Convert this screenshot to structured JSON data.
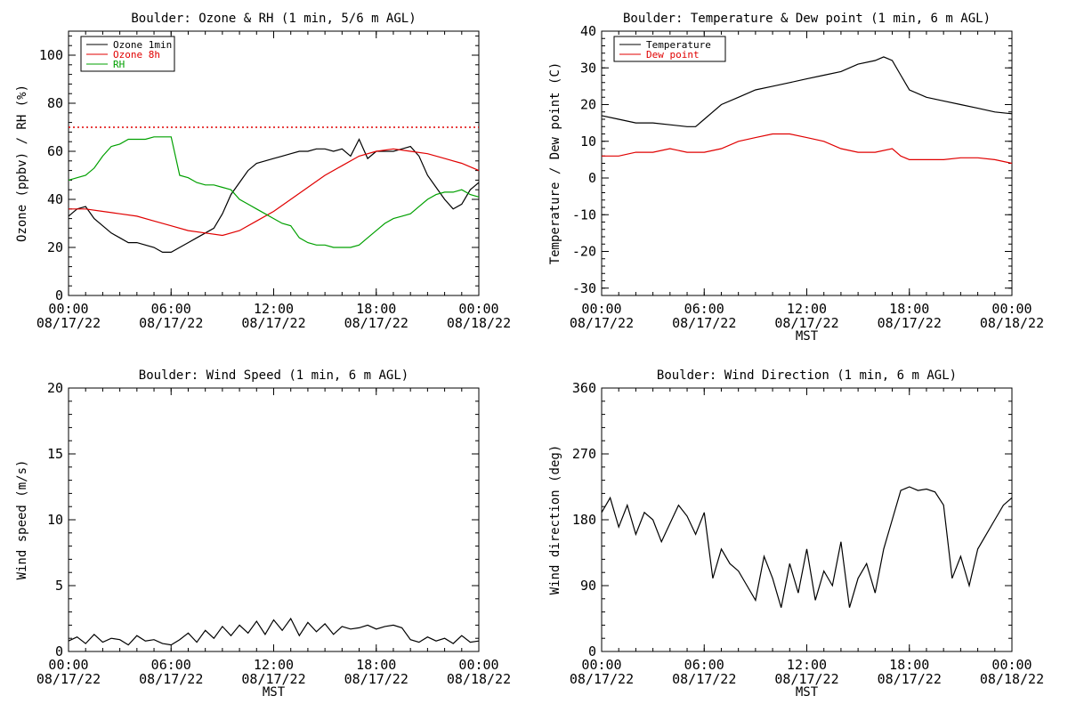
{
  "chart_data": [
    {
      "type": "line",
      "title": "Boulder: Ozone & RH (1 min, 5/6 m AGL)",
      "ylabel": "Ozone (ppbv) / RH (%)",
      "xlabel": "",
      "xlim": [
        0,
        24
      ],
      "ylim": [
        0,
        110
      ],
      "yticks": [
        0,
        20,
        40,
        60,
        80,
        100
      ],
      "xticks": [
        {
          "time": "00:00",
          "date": "08/17/22"
        },
        {
          "time": "06:00",
          "date": "08/17/22"
        },
        {
          "time": "12:00",
          "date": "08/17/22"
        },
        {
          "time": "18:00",
          "date": "08/17/22"
        },
        {
          "time": "00:00",
          "date": "08/18/22"
        }
      ],
      "legend": "top-left",
      "reference_line": {
        "y": 70,
        "color": "#e00000",
        "style": "dotted"
      },
      "series": [
        {
          "name": "Ozone 1min",
          "color": "#000000",
          "x": [
            0,
            0.5,
            1,
            1.5,
            2,
            2.5,
            3,
            3.5,
            4,
            4.5,
            5,
            5.5,
            6,
            6.5,
            7,
            7.5,
            8,
            8.5,
            9,
            9.5,
            10,
            10.5,
            11,
            11.5,
            12,
            12.5,
            13,
            13.5,
            14,
            14.5,
            15,
            15.5,
            16,
            16.5,
            17,
            17.5,
            18,
            18.5,
            19,
            19.5,
            20,
            20.5,
            21,
            21.5,
            22,
            22.5,
            23,
            23.5,
            24
          ],
          "y": [
            33,
            36,
            37,
            32,
            29,
            26,
            24,
            22,
            22,
            21,
            20,
            18,
            18,
            20,
            22,
            24,
            26,
            28,
            34,
            42,
            47,
            52,
            55,
            56,
            57,
            58,
            59,
            60,
            60,
            61,
            61,
            60,
            61,
            58,
            65,
            57,
            60,
            60,
            60,
            61,
            62,
            58,
            50,
            45,
            40,
            36,
            38,
            44,
            47
          ]
        },
        {
          "name": "Ozone 8h",
          "color": "#e00000",
          "x": [
            0,
            1,
            2,
            3,
            4,
            5,
            6,
            7,
            8,
            9,
            10,
            11,
            12,
            13,
            14,
            15,
            16,
            17,
            18,
            19,
            20,
            21,
            22,
            23,
            24
          ],
          "y": [
            36,
            36,
            35,
            34,
            33,
            31,
            29,
            27,
            26,
            25,
            27,
            31,
            35,
            40,
            45,
            50,
            54,
            58,
            60,
            61,
            60,
            59,
            57,
            55,
            52
          ]
        },
        {
          "name": "RH",
          "color": "#00a000",
          "x": [
            0,
            0.5,
            1,
            1.5,
            2,
            2.5,
            3,
            3.5,
            4,
            4.5,
            5,
            5.5,
            6,
            6.5,
            7,
            7.5,
            8,
            8.5,
            9,
            9.5,
            10,
            10.5,
            11,
            11.5,
            12,
            12.5,
            13,
            13.5,
            14,
            14.5,
            15,
            15.5,
            16,
            16.5,
            17,
            17.5,
            18,
            18.5,
            19,
            19.5,
            20,
            20.5,
            21,
            21.5,
            22,
            22.5,
            23,
            23.5,
            24
          ],
          "y": [
            48,
            49,
            50,
            53,
            58,
            62,
            63,
            65,
            65,
            65,
            66,
            66,
            66,
            50,
            49,
            47,
            46,
            46,
            45,
            44,
            40,
            38,
            36,
            34,
            32,
            30,
            29,
            24,
            22,
            21,
            21,
            20,
            20,
            20,
            21,
            24,
            27,
            30,
            32,
            33,
            34,
            37,
            40,
            42,
            43,
            43,
            44,
            42,
            41
          ]
        }
      ]
    },
    {
      "type": "line",
      "title": "Boulder: Temperature & Dew point (1 min, 6 m AGL)",
      "ylabel": "Temperature / Dew point (C)",
      "xlabel": "MST",
      "xlim": [
        0,
        24
      ],
      "ylim": [
        -32,
        40
      ],
      "yticks": [
        -30,
        -20,
        -10,
        0,
        10,
        20,
        30,
        40
      ],
      "xticks": [
        {
          "time": "00:00",
          "date": "08/17/22"
        },
        {
          "time": "06:00",
          "date": "08/17/22"
        },
        {
          "time": "12:00",
          "date": "08/17/22"
        },
        {
          "time": "18:00",
          "date": "08/17/22"
        },
        {
          "time": "00:00",
          "date": "08/18/22"
        }
      ],
      "legend": "top-left",
      "series": [
        {
          "name": "Temperature",
          "color": "#000000",
          "x": [
            0,
            1,
            2,
            3,
            4,
            5,
            5.5,
            6,
            7,
            8,
            9,
            10,
            11,
            12,
            13,
            14,
            15,
            16,
            16.5,
            17,
            17.5,
            18,
            19,
            20,
            21,
            22,
            23,
            24
          ],
          "y": [
            17,
            16,
            15,
            15,
            14.5,
            14,
            14,
            16,
            20,
            22,
            24,
            25,
            26,
            27,
            28,
            29,
            31,
            32,
            33,
            32,
            28,
            24,
            22,
            21,
            20,
            19,
            18,
            17.5
          ]
        },
        {
          "name": "Dew point",
          "color": "#e00000",
          "x": [
            0,
            1,
            2,
            3,
            4,
            5,
            6,
            7,
            8,
            9,
            10,
            11,
            12,
            13,
            14,
            15,
            16,
            17,
            17.5,
            18,
            19,
            20,
            21,
            22,
            23,
            24
          ],
          "y": [
            6,
            6,
            7,
            7,
            8,
            7,
            7,
            8,
            10,
            11,
            12,
            12,
            11,
            10,
            8,
            7,
            7,
            8,
            6,
            5,
            5,
            5,
            5.5,
            5.5,
            5,
            4
          ]
        }
      ]
    },
    {
      "type": "line",
      "title": "Boulder: Wind Speed (1 min, 6 m AGL)",
      "ylabel": "Wind speed (m/s)",
      "xlabel": "MST",
      "xlim": [
        0,
        24
      ],
      "ylim": [
        0,
        20
      ],
      "yticks": [
        0,
        5,
        10,
        15,
        20
      ],
      "xticks": [
        {
          "time": "00:00",
          "date": "08/17/22"
        },
        {
          "time": "06:00",
          "date": "08/17/22"
        },
        {
          "time": "12:00",
          "date": "08/17/22"
        },
        {
          "time": "18:00",
          "date": "08/17/22"
        },
        {
          "time": "00:00",
          "date": "08/18/22"
        }
      ],
      "series": [
        {
          "name": "",
          "color": "#000000",
          "x": [
            0,
            0.5,
            1,
            1.5,
            2,
            2.5,
            3,
            3.5,
            4,
            4.5,
            5,
            5.5,
            6,
            6.5,
            7,
            7.5,
            8,
            8.5,
            9,
            9.5,
            10,
            10.5,
            11,
            11.5,
            12,
            12.5,
            13,
            13.5,
            14,
            14.5,
            15,
            15.5,
            16,
            16.5,
            17,
            17.5,
            18,
            18.5,
            19,
            19.5,
            20,
            20.5,
            21,
            21.5,
            22,
            22.5,
            23,
            23.5,
            24
          ],
          "y": [
            0.8,
            1.1,
            0.6,
            1.3,
            0.7,
            1.0,
            0.9,
            0.5,
            1.2,
            0.8,
            0.9,
            0.6,
            0.5,
            0.9,
            1.4,
            0.7,
            1.6,
            1.0,
            1.9,
            1.2,
            2.0,
            1.4,
            2.3,
            1.3,
            2.4,
            1.6,
            2.5,
            1.2,
            2.2,
            1.5,
            2.1,
            1.3,
            1.9,
            1.7,
            1.8,
            2.0,
            1.7,
            1.9,
            2.0,
            1.8,
            0.9,
            0.7,
            1.1,
            0.8,
            1.0,
            0.6,
            1.2,
            0.7,
            0.8
          ]
        }
      ]
    },
    {
      "type": "line",
      "title": "Boulder: Wind Direction (1 min, 6 m AGL)",
      "ylabel": "Wind direction (deg)",
      "xlabel": "MST",
      "xlim": [
        0,
        24
      ],
      "ylim": [
        0,
        360
      ],
      "yticks": [
        0,
        90,
        180,
        270,
        360
      ],
      "xticks": [
        {
          "time": "00:00",
          "date": "08/17/22"
        },
        {
          "time": "06:00",
          "date": "08/17/22"
        },
        {
          "time": "12:00",
          "date": "08/17/22"
        },
        {
          "time": "18:00",
          "date": "08/17/22"
        },
        {
          "time": "00:00",
          "date": "08/18/22"
        }
      ],
      "series": [
        {
          "name": "",
          "color": "#000000",
          "x": [
            0,
            0.5,
            1,
            1.5,
            2,
            2.5,
            3,
            3.5,
            4,
            4.5,
            5,
            5.5,
            6,
            6.5,
            7,
            7.5,
            8,
            8.5,
            9,
            9.5,
            10,
            10.5,
            11,
            11.5,
            12,
            12.5,
            13,
            13.5,
            14,
            14.5,
            15,
            15.5,
            16,
            16.5,
            17,
            17.5,
            18,
            18.5,
            19,
            19.5,
            20,
            20.5,
            21,
            21.5,
            22,
            22.5,
            23,
            23.5,
            24
          ],
          "y": [
            190,
            210,
            170,
            200,
            160,
            190,
            180,
            150,
            175,
            200,
            185,
            160,
            190,
            100,
            140,
            120,
            110,
            90,
            70,
            130,
            100,
            60,
            120,
            80,
            140,
            70,
            110,
            90,
            150,
            60,
            100,
            120,
            80,
            140,
            180,
            220,
            225,
            220,
            222,
            218,
            200,
            100,
            130,
            90,
            140,
            160,
            180,
            200,
            210
          ]
        }
      ]
    }
  ]
}
